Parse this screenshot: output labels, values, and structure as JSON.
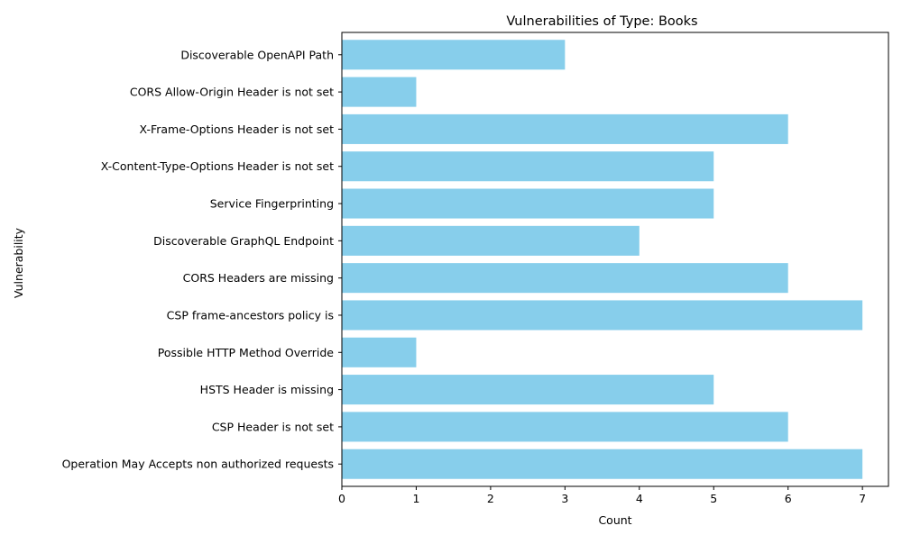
{
  "chart_data": {
    "type": "bar",
    "orientation": "horizontal",
    "title": "Vulnerabilities of Type: Books",
    "xlabel": "Count",
    "ylabel": "Vulnerability",
    "xlim": [
      0,
      7.35
    ],
    "xticks": [
      0,
      1,
      2,
      3,
      4,
      5,
      6,
      7
    ],
    "grid": false,
    "legend": "none",
    "bar_color": "#87ceeb",
    "categories": [
      "Operation May Accepts non authorized requests",
      "CSP Header is not set",
      "HSTS Header is missing",
      "Possible HTTP Method Override",
      "CSP frame-ancestors policy is",
      "CORS Headers are missing",
      "Discoverable GraphQL Endpoint",
      "Service Fingerprinting",
      "X-Content-Type-Options Header is not set",
      "X-Frame-Options Header is not set",
      "CORS Allow-Origin Header is not set",
      "Discoverable OpenAPI Path"
    ],
    "values": [
      7,
      6,
      5,
      1,
      7,
      6,
      4,
      5,
      5,
      6,
      1,
      3
    ]
  }
}
